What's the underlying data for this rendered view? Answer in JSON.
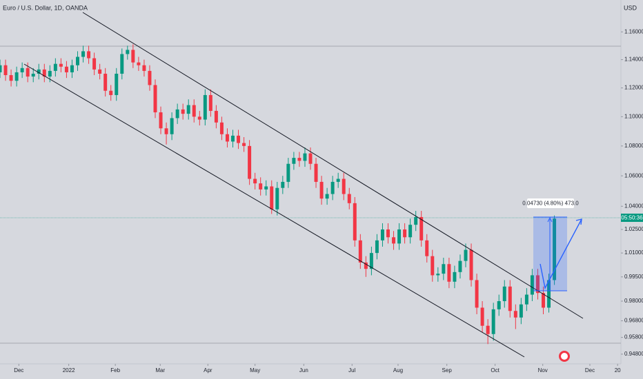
{
  "chart_data": {
    "type": "candlestick",
    "title": "Euro / U.S. Dollar, 1D, OANDA",
    "y_axis_label": "USD",
    "log_scale": true,
    "up_color": "#089981",
    "down_color": "#f23645",
    "measure_label": "0.04730 (4.80%) 473.0",
    "countdown": "05:50:36",
    "xlim": [
      0,
      112
    ],
    "xticks": [
      {
        "value": 3.4,
        "label": "Dec"
      },
      {
        "value": 12.4,
        "label": "2022"
      },
      {
        "value": 20.8,
        "label": "Feb"
      },
      {
        "value": 28.9,
        "label": "Mar"
      },
      {
        "value": 37.5,
        "label": "Apr"
      },
      {
        "value": 46,
        "label": "May"
      },
      {
        "value": 54.8,
        "label": "Jun"
      },
      {
        "value": 63.5,
        "label": "Jul"
      },
      {
        "value": 71.8,
        "label": "Aug"
      },
      {
        "value": 80.6,
        "label": "Sep"
      },
      {
        "value": 89.3,
        "label": "Oct"
      },
      {
        "value": 97.9,
        "label": "Nov"
      },
      {
        "value": 106.4,
        "label": "Dec"
      },
      {
        "value": 111.4,
        "label": "20"
      }
    ],
    "ylim": [
      0.94226,
      1.18339
    ],
    "yticks": [
      {
        "value": 1.16,
        "label": "1.16000"
      },
      {
        "value": 1.14,
        "label": "1.14000"
      },
      {
        "value": 1.12,
        "label": "1.12000"
      },
      {
        "value": 1.1,
        "label": "1.10000"
      },
      {
        "value": 1.08,
        "label": "1.08000"
      },
      {
        "value": 1.06,
        "label": "1.06000"
      },
      {
        "value": 1.04,
        "label": "1.04000"
      },
      {
        "value": 1.025,
        "label": "1.02500"
      },
      {
        "value": 1.01,
        "label": "1.01000"
      },
      {
        "value": 0.995,
        "label": "0.99500"
      },
      {
        "value": 0.98,
        "label": "0.98000"
      },
      {
        "value": 0.968,
        "label": "0.96800"
      },
      {
        "value": 0.958,
        "label": "0.95800"
      },
      {
        "value": 0.948,
        "label": "0.94800"
      }
    ],
    "candles": [
      [
        1.131,
        1.14,
        1.127,
        1.136
      ],
      [
        1.136,
        1.14,
        1.125,
        1.129
      ],
      [
        1.129,
        1.133,
        1.121,
        1.125
      ],
      [
        1.125,
        1.135,
        1.121,
        1.131
      ],
      [
        1.131,
        1.138,
        1.127,
        1.134
      ],
      [
        1.134,
        1.138,
        1.124,
        1.128
      ],
      [
        1.128,
        1.134,
        1.124,
        1.13
      ],
      [
        1.13,
        1.137,
        1.126,
        1.133
      ],
      [
        1.133,
        1.137,
        1.124,
        1.128
      ],
      [
        1.128,
        1.136,
        1.124,
        1.132
      ],
      [
        1.132,
        1.141,
        1.128,
        1.137
      ],
      [
        1.137,
        1.141,
        1.131,
        1.135
      ],
      [
        1.135,
        1.139,
        1.127,
        1.131
      ],
      [
        1.131,
        1.14,
        1.127,
        1.136
      ],
      [
        1.136,
        1.146,
        1.132,
        1.142
      ],
      [
        1.142,
        1.15,
        1.138,
        1.146
      ],
      [
        1.146,
        1.15,
        1.137,
        1.141
      ],
      [
        1.141,
        1.145,
        1.129,
        1.133
      ],
      [
        1.133,
        1.137,
        1.126,
        1.13
      ],
      [
        1.13,
        1.134,
        1.114,
        1.118
      ],
      [
        1.118,
        1.122,
        1.111,
        1.115
      ],
      [
        1.115,
        1.134,
        1.111,
        1.13
      ],
      [
        1.13,
        1.148,
        1.126,
        1.144
      ],
      [
        1.144,
        1.15,
        1.14,
        1.147
      ],
      [
        1.147,
        1.151,
        1.134,
        1.138
      ],
      [
        1.138,
        1.142,
        1.132,
        1.136
      ],
      [
        1.136,
        1.14,
        1.128,
        1.132
      ],
      [
        1.132,
        1.136,
        1.118,
        1.122
      ],
      [
        1.122,
        1.126,
        1.099,
        1.103
      ],
      [
        1.103,
        1.107,
        1.088,
        1.092
      ],
      [
        1.092,
        1.096,
        1.081,
        1.088
      ],
      [
        1.088,
        1.103,
        1.084,
        1.099
      ],
      [
        1.099,
        1.109,
        1.095,
        1.105
      ],
      [
        1.105,
        1.109,
        1.098,
        1.102
      ],
      [
        1.102,
        1.112,
        1.098,
        1.108
      ],
      [
        1.108,
        1.112,
        1.096,
        1.1
      ],
      [
        1.1,
        1.104,
        1.094,
        1.098
      ],
      [
        1.098,
        1.119,
        1.094,
        1.115
      ],
      [
        1.115,
        1.119,
        1.1,
        1.104
      ],
      [
        1.104,
        1.108,
        1.092,
        1.096
      ],
      [
        1.096,
        1.1,
        1.084,
        1.088
      ],
      [
        1.088,
        1.092,
        1.079,
        1.083
      ],
      [
        1.083,
        1.091,
        1.079,
        1.087
      ],
      [
        1.087,
        1.091,
        1.078,
        1.082
      ],
      [
        1.082,
        1.086,
        1.076,
        1.08
      ],
      [
        1.08,
        1.084,
        1.054,
        1.058
      ],
      [
        1.058,
        1.062,
        1.051,
        1.055
      ],
      [
        1.055,
        1.059,
        1.047,
        1.051
      ],
      [
        1.051,
        1.057,
        1.047,
        1.053
      ],
      [
        1.053,
        1.057,
        1.035,
        1.038
      ],
      [
        1.038,
        1.056,
        1.034,
        1.052
      ],
      [
        1.052,
        1.06,
        1.048,
        1.056
      ],
      [
        1.056,
        1.072,
        1.052,
        1.068
      ],
      [
        1.068,
        1.076,
        1.064,
        1.072
      ],
      [
        1.072,
        1.076,
        1.066,
        1.07
      ],
      [
        1.07,
        1.079,
        1.066,
        1.075
      ],
      [
        1.075,
        1.079,
        1.064,
        1.068
      ],
      [
        1.068,
        1.072,
        1.052,
        1.056
      ],
      [
        1.056,
        1.06,
        1.041,
        1.045
      ],
      [
        1.045,
        1.052,
        1.041,
        1.048
      ],
      [
        1.048,
        1.06,
        1.044,
        1.056
      ],
      [
        1.056,
        1.062,
        1.052,
        1.058
      ],
      [
        1.058,
        1.062,
        1.044,
        1.048
      ],
      [
        1.048,
        1.052,
        1.038,
        1.042
      ],
      [
        1.042,
        1.046,
        1.014,
        1.018
      ],
      [
        1.018,
        1.022,
        1.0,
        1.004
      ],
      [
        1.004,
        1.008,
        0.995,
        1.0
      ],
      [
        1.0,
        1.014,
        0.996,
        1.01
      ],
      [
        1.01,
        1.022,
        1.006,
        1.018
      ],
      [
        1.018,
        1.029,
        1.014,
        1.025
      ],
      [
        1.025,
        1.029,
        1.016,
        1.02
      ],
      [
        1.02,
        1.024,
        1.012,
        1.016
      ],
      [
        1.016,
        1.029,
        1.012,
        1.025
      ],
      [
        1.025,
        1.029,
        1.016,
        1.02
      ],
      [
        1.02,
        1.032,
        1.016,
        1.028
      ],
      [
        1.028,
        1.037,
        1.024,
        1.033
      ],
      [
        1.033,
        1.037,
        1.014,
        1.018
      ],
      [
        1.018,
        1.022,
        1.004,
        1.008
      ],
      [
        1.008,
        1.012,
        0.992,
        0.996
      ],
      [
        0.996,
        1.001,
        0.992,
        0.997
      ],
      [
        0.997,
        1.007,
        0.993,
        1.003
      ],
      [
        1.003,
        1.007,
        0.988,
        0.992
      ],
      [
        0.992,
        1.002,
        0.988,
        0.998
      ],
      [
        0.998,
        1.009,
        0.994,
        1.005
      ],
      [
        1.005,
        1.016,
        1.001,
        1.012
      ],
      [
        1.012,
        1.016,
        0.989,
        0.993
      ],
      [
        0.993,
        0.997,
        0.972,
        0.976
      ],
      [
        0.976,
        0.98,
        0.961,
        0.965
      ],
      [
        0.965,
        0.969,
        0.954,
        0.96
      ],
      [
        0.96,
        0.979,
        0.956,
        0.975
      ],
      [
        0.975,
        0.984,
        0.971,
        0.98
      ],
      [
        0.98,
        0.993,
        0.976,
        0.989
      ],
      [
        0.989,
        0.993,
        0.97,
        0.974
      ],
      [
        0.974,
        0.978,
        0.963,
        0.97
      ],
      [
        0.97,
        0.982,
        0.966,
        0.978
      ],
      [
        0.978,
        0.988,
        0.974,
        0.984
      ],
      [
        0.984,
        1.0,
        0.98,
        0.996
      ],
      [
        0.996,
        1.0,
        0.981,
        0.985
      ],
      [
        0.985,
        0.989,
        0.972,
        0.976
      ],
      [
        0.976,
        0.997,
        0.973,
        0.993
      ],
      [
        0.993,
        1.034,
        0.99,
        1.032
      ]
    ]
  }
}
